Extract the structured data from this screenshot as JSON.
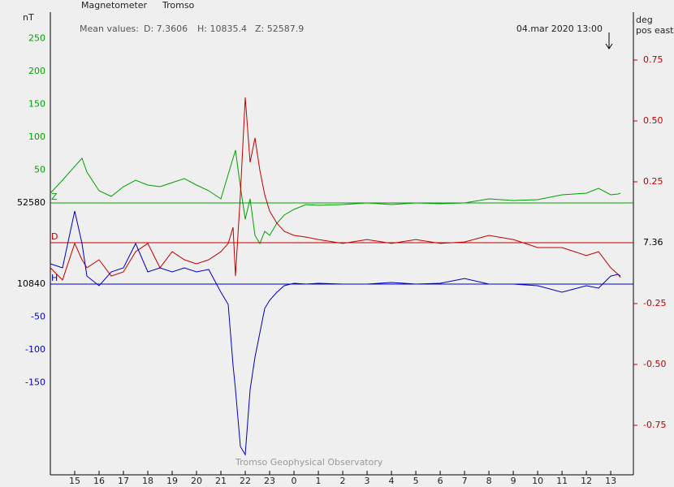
{
  "chart_data": {
    "type": "line",
    "title": "Magnetometer",
    "subtitle": "Tromso",
    "y_unit": "nT",
    "y2_unit": "deg",
    "y2_note": "pos east",
    "mean_label": "Mean values:",
    "mean_d": "D: 7.3606",
    "mean_h": "H: 10835.4",
    "mean_z": "Z: 52587.9",
    "time_stamp": "04.mar 2020 13:00",
    "credit": "Tromso Geophysical Observatory",
    "xlim": [
      14,
      37.93
    ],
    "xticks": [
      15,
      16,
      17,
      18,
      19,
      20,
      21,
      22,
      23,
      {
        "value": 24,
        "label": "0"
      },
      {
        "value": 25,
        "label": "1"
      },
      {
        "value": 26,
        "label": "2"
      },
      {
        "value": 27,
        "label": "3"
      },
      {
        "value": 28,
        "label": "4"
      },
      {
        "value": 29,
        "label": "5"
      },
      {
        "value": 30,
        "label": "6"
      },
      {
        "value": 31,
        "label": "7"
      },
      {
        "value": 32,
        "label": "8"
      },
      {
        "value": 33,
        "label": "9"
      },
      {
        "value": 34,
        "label": "10"
      },
      {
        "value": 35,
        "label": "11"
      },
      {
        "value": 36,
        "label": "12"
      },
      {
        "value": 37,
        "label": "13"
      }
    ],
    "x": [
      14,
      14.5,
      15,
      15.3,
      15.5,
      16,
      16.5,
      17,
      17.5,
      18,
      18.5,
      19,
      19.5,
      20,
      20.5,
      21,
      21.3,
      21.5,
      21.6,
      21.8,
      22,
      22.2,
      22.4,
      22.6,
      22.8,
      23,
      23.3,
      23.6,
      24,
      24.5,
      25,
      26,
      27,
      28,
      29,
      30,
      31,
      32,
      33,
      34,
      35,
      36,
      36.5,
      37,
      37.3,
      37.4
    ],
    "series": [
      {
        "name": "Z",
        "color": "#00a000",
        "side": "left",
        "ylim": [
          52166.4,
          52870.1
        ],
        "yticks": [
          {
            "value": 52830,
            "label": "250"
          },
          {
            "value": 52780,
            "label": "200"
          },
          {
            "value": 52730,
            "label": "150"
          },
          {
            "value": 52680,
            "label": "100"
          },
          {
            "value": 52630,
            "label": "50"
          },
          52580
        ],
        "values": [
          52594.8,
          52614.6,
          52635.6,
          52647.9,
          52626.9,
          52598.5,
          52589.9,
          52604.7,
          52614.6,
          52607.2,
          52604.7,
          52610.9,
          52617.0,
          52607.2,
          52598.5,
          52586.2,
          52623.2,
          52647.9,
          52660.2,
          52604.7,
          52555.3,
          52586.2,
          52530.6,
          52518.3,
          52536.8,
          52530.6,
          52549.1,
          52561.5,
          52570.1,
          52577.5,
          52576.3,
          52577.5,
          52580,
          52577.5,
          52580,
          52578.8,
          52580,
          52586.2,
          52583.7,
          52584.9,
          52592.3,
          52594.8,
          52602.2,
          52592.3,
          52593.6,
          52594.8
        ]
      },
      {
        "name": "D",
        "color": "#c00000",
        "side": "right",
        "ylim": [
          6.4067,
          8.3067
        ],
        "yticks": [
          {
            "value": 8.11,
            "label": "0.75"
          },
          {
            "value": 7.86,
            "label": "0.50"
          },
          {
            "value": 7.61,
            "label": "0.25"
          },
          7.36,
          {
            "value": 7.11,
            "label": "-0.25"
          },
          {
            "value": 6.86,
            "label": "-0.50"
          },
          {
            "value": 6.61,
            "label": "-0.75"
          }
        ],
        "values": [
          7.257,
          7.207,
          7.357,
          7.29,
          7.257,
          7.29,
          7.223,
          7.24,
          7.323,
          7.357,
          7.257,
          7.323,
          7.29,
          7.273,
          7.29,
          7.323,
          7.357,
          7.423,
          7.223,
          7.557,
          7.957,
          7.69,
          7.79,
          7.657,
          7.557,
          7.49,
          7.44,
          7.407,
          7.39,
          7.383,
          7.373,
          7.357,
          7.373,
          7.357,
          7.373,
          7.357,
          7.363,
          7.39,
          7.373,
          7.34,
          7.34,
          7.307,
          7.323,
          7.257,
          7.23,
          7.217
        ]
      },
      {
        "name": "H",
        "color": "#0000c0",
        "side": "left",
        "ylim": [
          10549.9,
          11253.6
        ],
        "yticks": [
          10840,
          {
            "value": 10790,
            "label": "-50"
          },
          {
            "value": 10740,
            "label": "-100"
          },
          {
            "value": 10690,
            "label": "-150"
          }
        ],
        "values": [
          10870.9,
          10864.7,
          10951.1,
          10901.7,
          10852.3,
          10837.5,
          10858.5,
          10864.7,
          10901.7,
          10858.5,
          10864.7,
          10858.5,
          10864.7,
          10858.5,
          10862.2,
          10827.7,
          10809.1,
          10716.5,
          10679.5,
          10593.1,
          10580.7,
          10679.5,
          10728.9,
          10765.9,
          10803.0,
          10815.3,
          10827.7,
          10837.5,
          10841.2,
          10840,
          10841.2,
          10840,
          10840,
          10842.5,
          10840,
          10841.2,
          10848.6,
          10840,
          10840,
          10837.5,
          10827.7,
          10837.5,
          10833.8,
          10852.3,
          10854.8,
          10852.3
        ]
      }
    ]
  }
}
